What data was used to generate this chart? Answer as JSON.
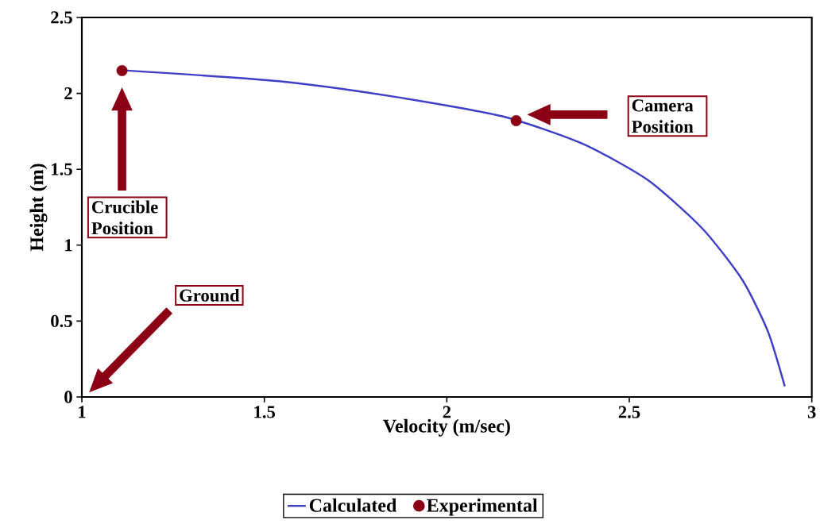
{
  "chart_data": {
    "type": "line",
    "xlabel": "Velocity (m/sec)",
    "ylabel": "Height (m)",
    "xlim": [
      1,
      3
    ],
    "ylim": [
      0,
      2.5
    ],
    "xticks": [
      1,
      1.5,
      2,
      2.5,
      3
    ],
    "yticks": [
      0,
      0.5,
      1,
      1.5,
      2,
      2.5
    ],
    "legend": "bottom",
    "grid": false,
    "series": [
      {
        "name": "Calculated",
        "color": "#3f3fc6",
        "marker": "none",
        "line_style": "solid",
        "x": [
          1.124,
          1.54,
          1.85,
          2.15,
          2.37,
          2.55,
          2.7,
          2.81,
          2.88,
          2.926
        ],
        "values": [
          2.15,
          2.08,
          1.98,
          1.85,
          1.67,
          1.43,
          1.11,
          0.77,
          0.43,
          0.07
        ]
      },
      {
        "name": "Experimental",
        "type": "scatter",
        "color": "#8b0014",
        "marker": "circle",
        "x": [
          1.11,
          2.19
        ],
        "values": [
          2.15,
          1.82
        ]
      }
    ],
    "annotations": [
      "Crucible Position",
      "Camera Position",
      "Ground"
    ]
  }
}
